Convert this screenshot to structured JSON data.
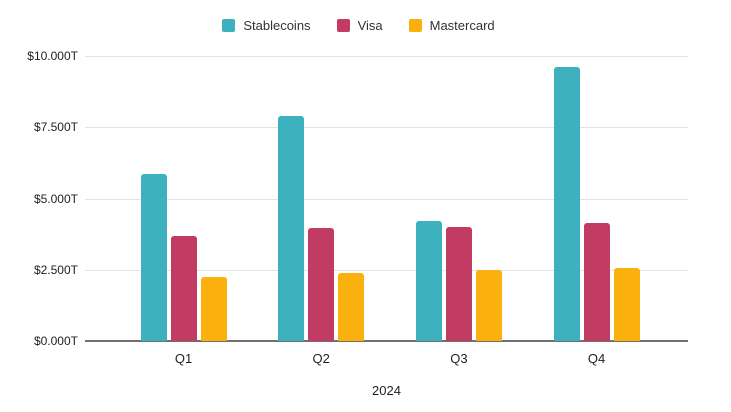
{
  "chart_data": {
    "type": "bar",
    "title": "",
    "xlabel": "2024",
    "ylabel": "",
    "categories": [
      "Q1",
      "Q2",
      "Q3",
      "Q4"
    ],
    "series": [
      {
        "name": "Stablecoins",
        "color": "#3DB2BE",
        "values": [
          5.85,
          7.9,
          4.2,
          9.6
        ]
      },
      {
        "name": "Visa",
        "color": "#C23B62",
        "values": [
          3.7,
          3.95,
          4.0,
          4.15
        ]
      },
      {
        "name": "Mastercard",
        "color": "#FBB10D",
        "values": [
          2.25,
          2.4,
          2.5,
          2.55
        ]
      }
    ],
    "ylim": [
      0,
      10
    ],
    "y_ticks": [
      0,
      2.5,
      5,
      7.5,
      10
    ],
    "y_tick_labels": [
      "$0.000T",
      "$2.500T",
      "$5.000T",
      "$7.500T",
      "$10.000T"
    ],
    "grid": true,
    "legend_position": "top"
  },
  "colors": {
    "background": "#ffffff",
    "gridline": "#e3e3e3",
    "axis_line": "#707070",
    "tick_text": "#1f1f1f",
    "legend_text": "#333333"
  }
}
